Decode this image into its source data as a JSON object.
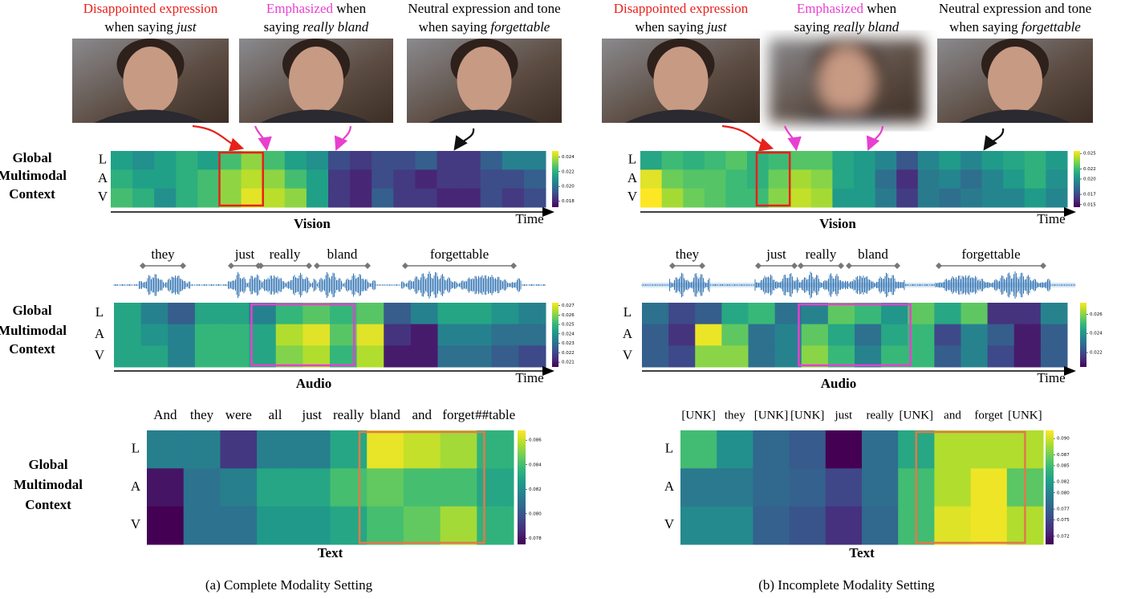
{
  "row_labels": [
    "L",
    "A",
    "V"
  ],
  "side_label": [
    "Global",
    "Multimodal",
    "Context"
  ],
  "time_label": "Time",
  "panels": [
    {
      "caption": "(a) Complete Modality Setting",
      "frames": [
        {
          "line1": [
            "Disappointed expression"
          ],
          "line2": [
            "when saying ",
            "just"
          ]
        },
        {
          "line1": [
            "Emphasized",
            " when"
          ],
          "line2": [
            "saying ",
            "really bland"
          ]
        },
        {
          "line1": [
            "Neutral expression and tone"
          ],
          "line2": [
            "when saying ",
            "forgettable"
          ]
        }
      ],
      "words": [
        "they",
        "just",
        "really",
        "bland",
        "forgettable"
      ],
      "tokens": [
        "And",
        "they",
        "were",
        "all",
        "just",
        "really",
        "bland",
        "and",
        "forget",
        "##table"
      ],
      "vision": {
        "title": "Vision",
        "clim": [
          0.0172,
          0.0248
        ],
        "cticks": [
          0.024,
          0.022,
          {
            "value": 0.02,
            "label": "0.020"
          },
          0.018
        ],
        "values": [
          [
            0.0215,
            0.021,
            0.0215,
            0.022,
            0.0215,
            0.0225,
            0.0235,
            0.0225,
            0.0215,
            0.021,
            0.019,
            0.0185,
            0.019,
            0.019,
            0.0195,
            0.0185,
            0.0185,
            0.0195,
            0.0205,
            0.0205
          ],
          [
            0.022,
            0.0215,
            0.0215,
            0.022,
            0.0225,
            0.0235,
            0.024,
            0.0235,
            0.0225,
            0.0215,
            0.0185,
            0.018,
            0.019,
            0.0185,
            0.018,
            0.0185,
            0.0185,
            0.019,
            0.019,
            0.0195
          ],
          [
            0.0225,
            0.022,
            0.021,
            0.022,
            0.0225,
            0.0235,
            0.0245,
            0.024,
            0.0235,
            0.0215,
            0.0185,
            0.018,
            0.0195,
            0.0185,
            0.0185,
            0.018,
            0.018,
            0.019,
            0.0185,
            0.019
          ]
        ]
      },
      "audio": {
        "title": "Audio",
        "clim": [
          0.0205,
          0.0273
        ],
        "cticks": [
          0.027,
          0.026,
          0.025,
          0.024,
          0.023,
          0.022,
          0.021
        ],
        "values": [
          [
            0.0245,
            0.0235,
            0.0225,
            0.0245,
            0.0245,
            0.0235,
            0.025,
            0.0255,
            0.025,
            0.0255,
            0.0225,
            0.0235,
            0.0245,
            0.0245,
            0.024,
            0.0235
          ],
          [
            0.0245,
            0.024,
            0.0235,
            0.025,
            0.025,
            0.0245,
            0.0265,
            0.027,
            0.0255,
            0.027,
            0.0215,
            0.021,
            0.0235,
            0.0235,
            0.023,
            0.023
          ],
          [
            0.0245,
            0.0245,
            0.0235,
            0.025,
            0.025,
            0.0245,
            0.026,
            0.0265,
            0.025,
            0.0265,
            0.021,
            0.021,
            0.023,
            0.023,
            0.0225,
            0.022
          ]
        ]
      },
      "text": {
        "title": "Text",
        "clim": [
          0.0775,
          0.0868
        ],
        "cticks": [
          0.086,
          0.084,
          0.082,
          {
            "value": 0.08,
            "label": "0.080"
          },
          0.078
        ],
        "values": [
          [
            0.0815,
            0.0815,
            0.079,
            0.0815,
            0.0815,
            0.083,
            0.0865,
            0.086,
            0.0855,
            0.0835
          ],
          [
            0.078,
            0.081,
            0.0815,
            0.083,
            0.083,
            0.084,
            0.0845,
            0.084,
            0.084,
            0.083
          ],
          [
            0.0775,
            0.081,
            0.081,
            0.0825,
            0.0825,
            0.083,
            0.084,
            0.0845,
            0.0855,
            0.0835
          ]
        ]
      }
    },
    {
      "caption": "(b) Incomplete Modality Setting",
      "frames": [
        {
          "line1": [
            "Disappointed expression"
          ],
          "line2": [
            "when saying ",
            "just"
          ]
        },
        {
          "line1": [
            "Emphasized",
            " when"
          ],
          "line2": [
            "saying ",
            "really bland"
          ]
        },
        {
          "line1": [
            "Neutral expression and tone"
          ],
          "line2": [
            "when saying ",
            "forgettable"
          ]
        }
      ],
      "words": [
        "they",
        "just",
        "really",
        "bland",
        "forgettable"
      ],
      "tokens": [
        "[UNK]",
        "they",
        "[UNK]",
        "[UNK]",
        "just",
        "really",
        "[UNK]",
        "and",
        "forget",
        "[UNK]"
      ],
      "vision": {
        "title": "Vision",
        "clim": [
          0.0145,
          0.0255
        ],
        "cticks": [
          0.025,
          0.022,
          {
            "value": 0.02,
            "label": "0.020"
          },
          0.017,
          0.015
        ],
        "values": [
          [
            0.021,
            0.022,
            0.0215,
            0.022,
            0.0225,
            0.0215,
            0.022,
            0.0225,
            0.0225,
            0.021,
            0.0205,
            0.0195,
            0.0175,
            0.0195,
            0.0205,
            0.0195,
            0.0205,
            0.021,
            0.0215,
            0.0205
          ],
          [
            0.025,
            0.023,
            0.0225,
            0.0225,
            0.022,
            0.0215,
            0.023,
            0.024,
            0.0235,
            0.021,
            0.0205,
            0.0185,
            0.016,
            0.019,
            0.0195,
            0.0185,
            0.0195,
            0.0205,
            0.0215,
            0.02
          ],
          [
            0.0255,
            0.024,
            0.023,
            0.0225,
            0.022,
            0.022,
            0.0235,
            0.0245,
            0.024,
            0.0205,
            0.0205,
            0.019,
            0.0165,
            0.019,
            0.0185,
            0.019,
            0.0195,
            0.0195,
            0.0205,
            0.0195
          ]
        ]
      },
      "audio": {
        "title": "Audio",
        "clim": [
          0.0205,
          0.0272
        ],
        "cticks": [
          0.026,
          0.024,
          0.022
        ],
        "values": [
          [
            0.023,
            0.022,
            0.0225,
            0.0245,
            0.025,
            0.023,
            0.0235,
            0.0255,
            0.025,
            0.024,
            0.0255,
            0.0245,
            0.0255,
            0.0215,
            0.0215,
            0.0235
          ],
          [
            0.0225,
            0.0215,
            0.027,
            0.0255,
            0.023,
            0.0235,
            0.0255,
            0.0245,
            0.023,
            0.0245,
            0.025,
            0.022,
            0.0235,
            0.0225,
            0.021,
            0.0225
          ],
          [
            0.0225,
            0.022,
            0.026,
            0.026,
            0.023,
            0.0235,
            0.026,
            0.025,
            0.0235,
            0.025,
            0.025,
            0.0225,
            0.0235,
            0.022,
            0.021,
            0.0225
          ]
        ]
      },
      "text": {
        "title": "Text",
        "clim": [
          0.0705,
          0.0915
        ],
        "cticks": [
          {
            "value": 0.09,
            "label": "0.090"
          },
          0.087,
          0.085,
          0.082,
          {
            "value": 0.08,
            "label": "0.080"
          },
          0.077,
          0.075,
          0.072
        ],
        "values": [
          [
            0.085,
            0.081,
            0.0775,
            0.0765,
            0.0705,
            0.078,
            0.083,
            0.089,
            0.089,
            0.089
          ],
          [
            0.079,
            0.079,
            0.0775,
            0.077,
            0.075,
            0.078,
            0.085,
            0.089,
            0.091,
            0.086
          ],
          [
            0.0805,
            0.0805,
            0.077,
            0.076,
            0.0735,
            0.0775,
            0.085,
            0.0905,
            0.091,
            0.089
          ]
        ]
      }
    }
  ]
}
